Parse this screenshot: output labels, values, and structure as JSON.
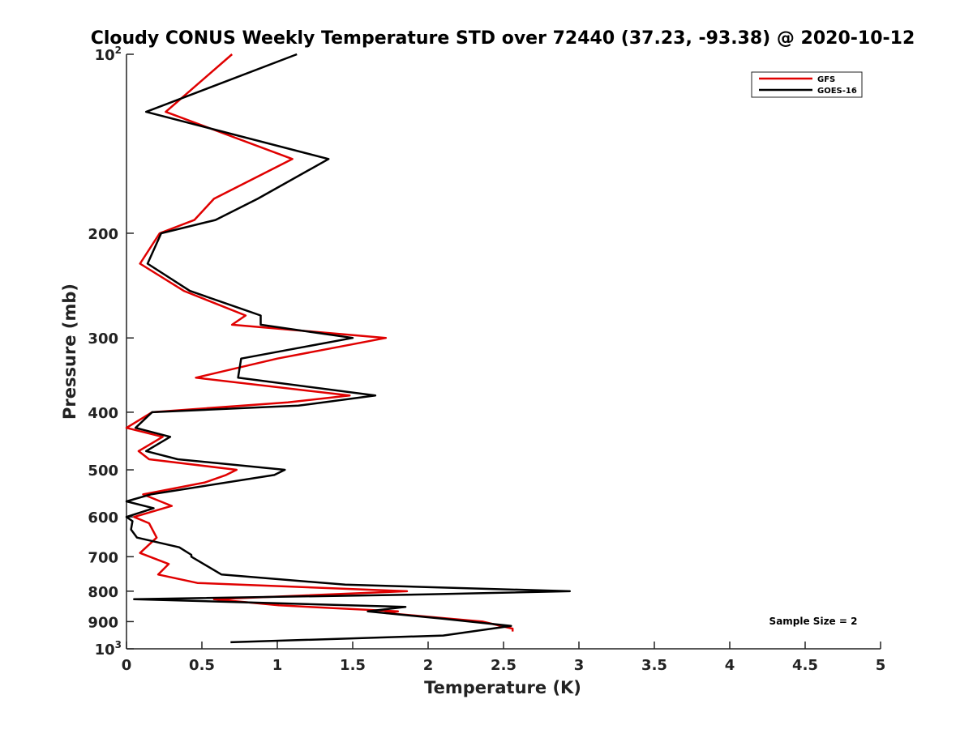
{
  "chart_data": {
    "type": "line",
    "title": "Cloudy CONUS Weekly Temperature STD over 72440 (37.23, -93.38) @ 2020-10-12",
    "xlabel": "Temperature (K)",
    "ylabel": "Pressure (mb)",
    "xlim": [
      0,
      5
    ],
    "ylim": [
      100,
      1000
    ],
    "y_scale": "log",
    "y_reversed": true,
    "x_ticks": [
      "0",
      "0.5",
      "1",
      "1.5",
      "2",
      "2.5",
      "3",
      "3.5",
      "4",
      "4.5",
      "5"
    ],
    "y_ticks": [
      {
        "value": 100,
        "base": "10",
        "exp": "2"
      },
      {
        "value": 200,
        "label": "200"
      },
      {
        "value": 300,
        "label": "300"
      },
      {
        "value": 400,
        "label": "400"
      },
      {
        "value": 500,
        "label": "500"
      },
      {
        "value": 600,
        "label": "600"
      },
      {
        "value": 700,
        "label": "700"
      },
      {
        "value": 800,
        "label": "800"
      },
      {
        "value": 900,
        "label": "900"
      },
      {
        "value": 1000,
        "base": "10",
        "exp": "3"
      }
    ],
    "legend_position": "top-right",
    "grid": false,
    "annotation": "Sample Size = 2",
    "series": [
      {
        "name": "GFS",
        "color": "#e00000",
        "points": [
          [
            0.7,
            100
          ],
          [
            0.26,
            125
          ],
          [
            1.1,
            150
          ],
          [
            0.58,
            175
          ],
          [
            0.45,
            190
          ],
          [
            0.22,
            200
          ],
          [
            0.09,
            225
          ],
          [
            0.38,
            250
          ],
          [
            0.79,
            275
          ],
          [
            0.7,
            285
          ],
          [
            1.72,
            300
          ],
          [
            1.0,
            325
          ],
          [
            0.46,
            350
          ],
          [
            1.48,
            375
          ],
          [
            1.07,
            385
          ],
          [
            0.17,
            400
          ],
          [
            0.0,
            425
          ],
          [
            0.24,
            440
          ],
          [
            0.08,
            465
          ],
          [
            0.15,
            480
          ],
          [
            0.73,
            500
          ],
          [
            0.66,
            510
          ],
          [
            0.52,
            525
          ],
          [
            0.11,
            550
          ],
          [
            0.3,
            575
          ],
          [
            0.05,
            600
          ],
          [
            0.15,
            615
          ],
          [
            0.2,
            650
          ],
          [
            0.09,
            690
          ],
          [
            0.28,
            720
          ],
          [
            0.21,
            750
          ],
          [
            0.47,
            775
          ],
          [
            1.86,
            800
          ],
          [
            0.58,
            825
          ],
          [
            1.01,
            845
          ],
          [
            1.8,
            865
          ],
          [
            1.71,
            870
          ],
          [
            2.36,
            900
          ],
          [
            2.56,
            925
          ],
          [
            2.56,
            935
          ]
        ]
      },
      {
        "name": "GOES-16",
        "color": "#000000",
        "points": [
          [
            1.13,
            100
          ],
          [
            0.13,
            125
          ],
          [
            1.34,
            150
          ],
          [
            0.87,
            175
          ],
          [
            0.59,
            190
          ],
          [
            0.23,
            200
          ],
          [
            0.14,
            225
          ],
          [
            0.42,
            250
          ],
          [
            0.89,
            275
          ],
          [
            0.89,
            285
          ],
          [
            1.5,
            300
          ],
          [
            0.76,
            325
          ],
          [
            0.74,
            350
          ],
          [
            1.65,
            375
          ],
          [
            1.14,
            390
          ],
          [
            0.17,
            400
          ],
          [
            0.06,
            425
          ],
          [
            0.29,
            440
          ],
          [
            0.13,
            465
          ],
          [
            0.34,
            480
          ],
          [
            1.05,
            500
          ],
          [
            0.98,
            510
          ],
          [
            0.16,
            550
          ],
          [
            0.0,
            565
          ],
          [
            0.18,
            580
          ],
          [
            0.0,
            600
          ],
          [
            0.04,
            610
          ],
          [
            0.03,
            630
          ],
          [
            0.07,
            650
          ],
          [
            0.35,
            675
          ],
          [
            0.43,
            695
          ],
          [
            0.43,
            700
          ],
          [
            0.63,
            750
          ],
          [
            1.45,
            780
          ],
          [
            2.94,
            800
          ],
          [
            2.0,
            810
          ],
          [
            0.05,
            825
          ],
          [
            1.85,
            850
          ],
          [
            1.6,
            865
          ],
          [
            2.1,
            890
          ],
          [
            2.55,
            915
          ],
          [
            2.1,
            950
          ],
          [
            0.69,
            975
          ]
        ]
      }
    ]
  }
}
